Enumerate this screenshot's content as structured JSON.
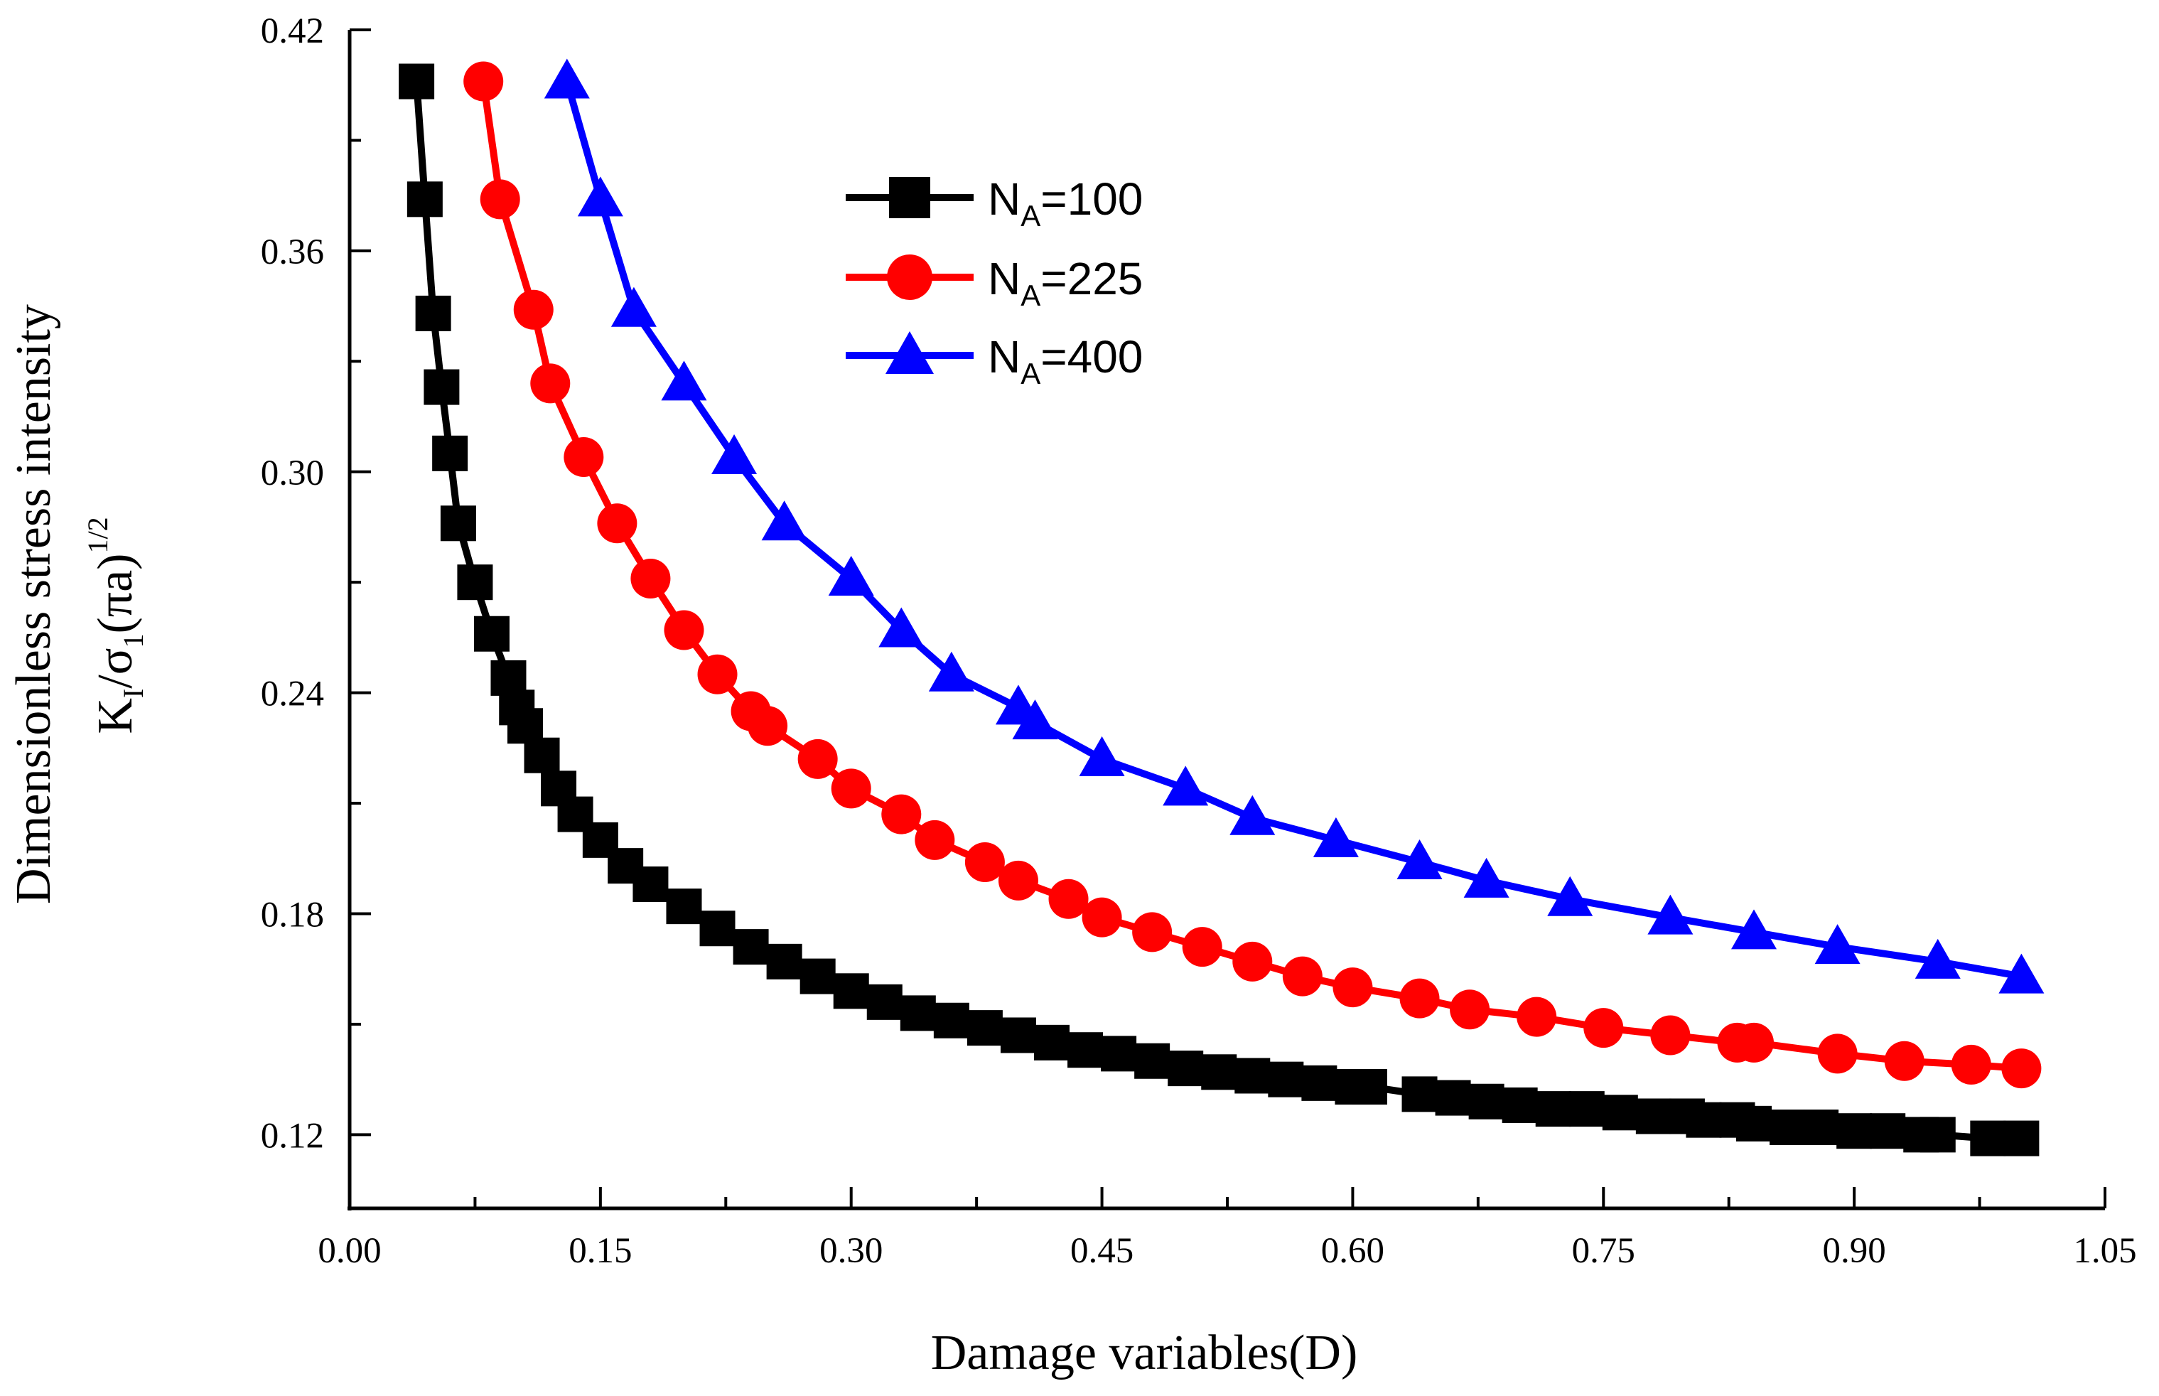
{
  "chart_data": {
    "type": "line",
    "title": "",
    "xlabel": "Damage variables(D)",
    "ylabel": "Dimensionless stress intensity",
    "ylabel_formula": {
      "main": "K",
      "main_sub": "I",
      "slash": "/σ",
      "sigma_sub": "1",
      "paren": "(πa)",
      "sup": "1/2"
    },
    "xlim": [
      0.0,
      1.05
    ],
    "ylim": [
      0.1,
      0.42
    ],
    "xticks": [
      0.0,
      0.15,
      0.3,
      0.45,
      0.6,
      0.75,
      0.9,
      1.05
    ],
    "xtick_labels": [
      "0.00",
      "0.15",
      "0.30",
      "0.45",
      "0.60",
      "0.75",
      "0.90",
      "1.05"
    ],
    "yticks": [
      0.12,
      0.18,
      0.24,
      0.3,
      0.36,
      0.42
    ],
    "ytick_labels": [
      "0.12",
      "0.18",
      "0.24",
      "0.30",
      "0.36",
      "0.42"
    ],
    "grid": false,
    "legend_position": "top-center",
    "series": [
      {
        "name": "N_A=100",
        "label_main": "N",
        "label_sub": "A",
        "label_value": "=100",
        "color": "#000000",
        "marker": "square",
        "x": [
          0.04,
          0.045,
          0.05,
          0.055,
          0.06,
          0.065,
          0.075,
          0.085,
          0.095,
          0.1,
          0.105,
          0.115,
          0.125,
          0.135,
          0.15,
          0.165,
          0.18,
          0.2,
          0.22,
          0.24,
          0.26,
          0.28,
          0.3,
          0.32,
          0.34,
          0.36,
          0.38,
          0.4,
          0.42,
          0.44,
          0.46,
          0.48,
          0.5,
          0.52,
          0.54,
          0.56,
          0.58,
          0.6,
          0.61,
          0.64,
          0.66,
          0.68,
          0.7,
          0.72,
          0.74,
          0.76,
          0.78,
          0.8,
          0.81,
          0.83,
          0.84,
          0.86,
          0.88,
          0.9,
          0.92,
          0.94,
          0.95,
          0.98,
          1.0
        ],
        "y": [
          0.406,
          0.374,
          0.343,
          0.323,
          0.305,
          0.286,
          0.27,
          0.256,
          0.244,
          0.236,
          0.231,
          0.223,
          0.214,
          0.207,
          0.2,
          0.193,
          0.188,
          0.182,
          0.176,
          0.171,
          0.167,
          0.163,
          0.159,
          0.156,
          0.153,
          0.151,
          0.149,
          0.147,
          0.145,
          0.143,
          0.142,
          0.14,
          0.138,
          0.137,
          0.136,
          0.135,
          0.134,
          0.133,
          0.133,
          0.131,
          0.13,
          0.129,
          0.128,
          0.127,
          0.127,
          0.126,
          0.125,
          0.125,
          0.124,
          0.124,
          0.123,
          0.122,
          0.122,
          0.121,
          0.121,
          0.12,
          0.12,
          0.119,
          0.119
        ]
      },
      {
        "name": "N_A=225",
        "label_main": "N",
        "label_sub": "A",
        "label_value": "=225",
        "color": "#ff0000",
        "marker": "circle",
        "x": [
          0.08,
          0.09,
          0.11,
          0.12,
          0.14,
          0.16,
          0.18,
          0.2,
          0.22,
          0.24,
          0.25,
          0.28,
          0.3,
          0.33,
          0.35,
          0.38,
          0.4,
          0.43,
          0.45,
          0.48,
          0.51,
          0.54,
          0.57,
          0.6,
          0.64,
          0.67,
          0.71,
          0.75,
          0.79,
          0.83,
          0.84,
          0.89,
          0.93,
          0.97,
          1.0
        ],
        "y": [
          0.406,
          0.374,
          0.344,
          0.324,
          0.304,
          0.286,
          0.271,
          0.257,
          0.245,
          0.235,
          0.231,
          0.222,
          0.214,
          0.207,
          0.2,
          0.194,
          0.189,
          0.184,
          0.179,
          0.175,
          0.171,
          0.167,
          0.163,
          0.16,
          0.157,
          0.154,
          0.152,
          0.149,
          0.147,
          0.145,
          0.145,
          0.142,
          0.14,
          0.139,
          0.138
        ]
      },
      {
        "name": "N_A=400",
        "label_main": "N",
        "label_sub": "A",
        "label_value": "=400",
        "color": "#0000ff",
        "marker": "triangle",
        "x": [
          0.13,
          0.15,
          0.17,
          0.2,
          0.23,
          0.26,
          0.3,
          0.33,
          0.36,
          0.4,
          0.41,
          0.45,
          0.5,
          0.54,
          0.59,
          0.64,
          0.68,
          0.73,
          0.79,
          0.84,
          0.89,
          0.95,
          1.0
        ],
        "y": [
          0.406,
          0.374,
          0.344,
          0.324,
          0.304,
          0.286,
          0.271,
          0.257,
          0.245,
          0.236,
          0.232,
          0.222,
          0.214,
          0.206,
          0.2,
          0.194,
          0.189,
          0.184,
          0.179,
          0.175,
          0.171,
          0.167,
          0.163
        ]
      }
    ]
  }
}
